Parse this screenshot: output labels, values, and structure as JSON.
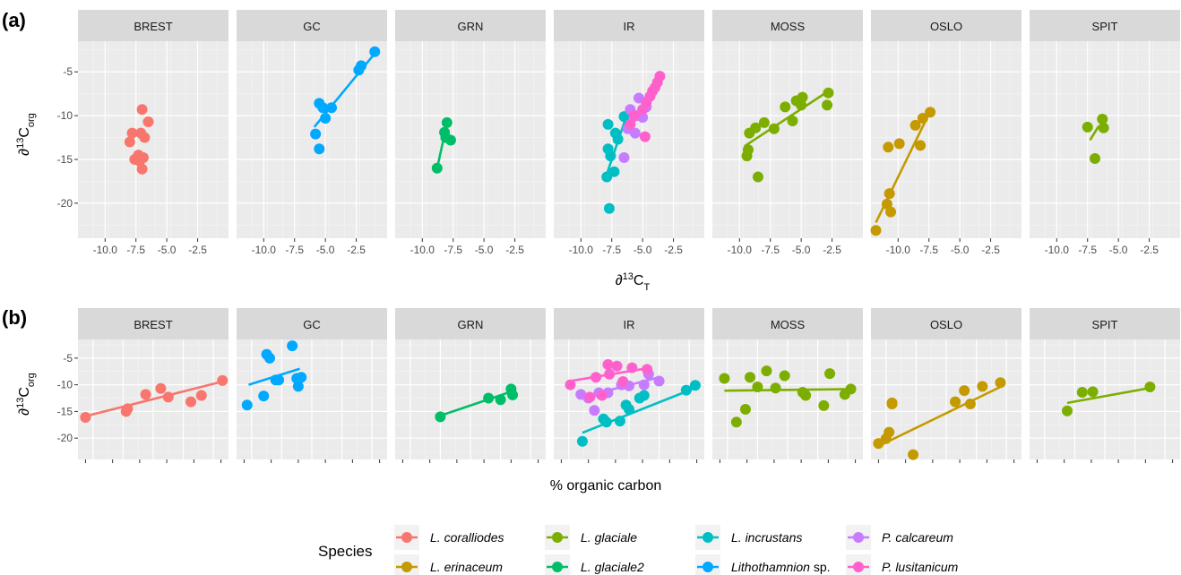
{
  "figure": {
    "panel_labels": [
      "(a)",
      "(b)"
    ],
    "facets": [
      "BREST",
      "GC",
      "GRN",
      "IR",
      "MOSS",
      "OSLO",
      "SPIT"
    ],
    "x_title_a": "∂13CT",
    "x_title_b": "% organic carbon",
    "y_title": "∂13Corg"
  },
  "legend": {
    "title": "Species",
    "items": [
      {
        "name": "L. coralliodes",
        "color": "#F8766D"
      },
      {
        "name": "L. erinaceum",
        "color": "#C49A00"
      },
      {
        "name": "L. glaciale",
        "color": "#7CAE00"
      },
      {
        "name": "L. glaciale2",
        "color": "#00BE67"
      },
      {
        "name": "L. incrustans",
        "color": "#00BFC4"
      },
      {
        "name": "Lithothamnion sp.",
        "color": "#00A9FF"
      },
      {
        "name": "P. calcareum",
        "color": "#C77CFF"
      },
      {
        "name": "P. lusitanicum",
        "color": "#FF61CC"
      }
    ]
  },
  "chart_data": [
    {
      "type": "scatter",
      "panel": "(a)",
      "title": "",
      "xlabel": "∂13CT",
      "ylabel": "∂13Corg",
      "xlim": [
        -12.2,
        0
      ],
      "ylim": [
        -24,
        -1.5
      ],
      "x_ticks": [
        -10.0,
        -7.5,
        -5.0,
        -2.5
      ],
      "x_tick_labels": [
        "-10.0",
        "-7.5",
        "-5.0",
        "-2.5"
      ],
      "y_ticks": [
        -20,
        -15,
        -10,
        -5
      ],
      "y_tick_labels": [
        "-20",
        "-15",
        "-10",
        "-5"
      ],
      "grid": true,
      "facets": [
        {
          "name": "BREST",
          "series": [
            {
              "name": "L. coralliodes",
              "color": "#F8766D",
              "x": [
                -7.0,
                -6.5,
                -7.8,
                -7.1,
                -6.8,
                -8.0,
                -7.3,
                -6.9,
                -7.6,
                -7.2,
                -7.0
              ],
              "y": [
                -9.3,
                -10.7,
                -12.0,
                -12.0,
                -12.5,
                -13.0,
                -14.5,
                -14.8,
                -15.0,
                -15.2,
                -16.1
              ],
              "fit": null
            }
          ]
        },
        {
          "name": "GC",
          "series": [
            {
              "name": "Lithothamnion sp.",
              "color": "#00A9FF",
              "x": [
                -1.0,
                -2.1,
                -2.3,
                -5.5,
                -5.2,
                -4.5,
                -5.0,
                -5.8,
                -5.5
              ],
              "y": [
                -2.7,
                -4.3,
                -4.8,
                -8.6,
                -9.1,
                -9.1,
                -10.3,
                -12.1,
                -13.8
              ],
              "fit": [
                [
                  -5.9,
                  -11.3
                ],
                [
                  -1.0,
                  -2.9
                ]
              ]
            }
          ]
        },
        {
          "name": "GRN",
          "series": [
            {
              "name": "L. glaciale2",
              "color": "#00BE67",
              "x": [
                -8.0,
                -8.2,
                -8.1,
                -7.7,
                -8.8
              ],
              "y": [
                -10.8,
                -11.9,
                -12.5,
                -12.8,
                -16.0
              ],
              "fit": [
                [
                  -8.8,
                  -16.0
                ],
                [
                  -8.0,
                  -10.9
                ]
              ]
            }
          ]
        },
        {
          "name": "IR",
          "series": [
            {
              "name": "L. incrustans",
              "color": "#00BFC4",
              "x": [
                -7.8,
                -6.5,
                -7.2,
                -7.0,
                -7.8,
                -7.6,
                -7.3,
                -7.9,
                -7.7
              ],
              "y": [
                -11.0,
                -10.1,
                -12.0,
                -12.7,
                -13.8,
                -14.6,
                -16.4,
                -17.0,
                -20.6
              ],
              "fit": [
                [
                  -8.0,
                  -17.1
                ],
                [
                  -6.3,
                  -10.0
                ]
              ]
            },
            {
              "name": "P. calcareum",
              "color": "#C77CFF",
              "x": [
                -5.3,
                -4.7,
                -6.0,
                -5.5,
                -5.0,
                -6.2,
                -5.6,
                -6.5
              ],
              "y": [
                -8.0,
                -9.0,
                -9.3,
                -10.0,
                -10.2,
                -11.5,
                -12.0,
                -14.8
              ],
              "fit": [
                [
                  -6.3,
                  -12.0
                ],
                [
                  -4.8,
                  -8.3
                ]
              ]
            },
            {
              "name": "P. lusitanicum",
              "color": "#FF61CC",
              "x": [
                -3.6,
                -3.8,
                -4.0,
                -4.2,
                -4.4,
                -4.7,
                -5.0,
                -5.7,
                -6.0,
                -4.8
              ],
              "y": [
                -5.5,
                -6.2,
                -6.8,
                -7.2,
                -7.8,
                -8.5,
                -9.3,
                -10.0,
                -11.0,
                -12.4
              ],
              "fit": [
                [
                  -6.0,
                  -11.5
                ],
                [
                  -3.6,
                  -5.6
                ]
              ]
            }
          ]
        },
        {
          "name": "MOSS",
          "series": [
            {
              "name": "L. glaciale",
              "color": "#7CAE00",
              "x": [
                -2.8,
                -2.9,
                -4.9,
                -5.4,
                -5.0,
                -6.3,
                -5.7,
                -7.2,
                -8.0,
                -8.7,
                -9.2,
                -9.3,
                -9.4,
                -8.5
              ],
              "y": [
                -7.4,
                -8.8,
                -7.9,
                -8.3,
                -8.8,
                -9.0,
                -10.6,
                -11.5,
                -10.8,
                -11.4,
                -12.0,
                -13.9,
                -14.6,
                -17.0
              ],
              "fit": [
                [
                  -9.6,
                  -13.5
                ],
                [
                  -2.8,
                  -7.2
                ]
              ]
            }
          ]
        },
        {
          "name": "OSLO",
          "series": [
            {
              "name": "L. erinaceum",
              "color": "#C49A00",
              "x": [
                -7.4,
                -8.0,
                -8.6,
                -9.9,
                -10.8,
                -8.2,
                -10.7,
                -10.9,
                -10.6,
                -11.8
              ],
              "y": [
                -9.6,
                -10.3,
                -11.1,
                -13.2,
                -13.6,
                -13.4,
                -18.9,
                -20.1,
                -21.0,
                -23.1
              ],
              "fit": [
                [
                  -11.8,
                  -22.2
                ],
                [
                  -7.4,
                  -9.5
                ]
              ]
            }
          ]
        },
        {
          "name": "SPIT",
          "series": [
            {
              "name": "L. glaciale",
              "color": "#7CAE00",
              "x": [
                -6.3,
                -7.5,
                -6.2,
                -6.9
              ],
              "y": [
                -10.4,
                -11.3,
                -11.4,
                -14.9
              ],
              "fit": [
                [
                  -7.3,
                  -12.8
                ],
                [
                  -6.6,
                  -11.2
                ]
              ]
            }
          ]
        }
      ]
    },
    {
      "type": "scatter",
      "panel": "(b)",
      "title": "",
      "xlabel": "% organic carbon",
      "ylabel": "∂13Corg",
      "xlim": [
        0,
        1
      ],
      "ylim": [
        -24,
        -1.5
      ],
      "y_ticks": [
        -20,
        -15,
        -10,
        -5
      ],
      "y_tick_labels": [
        "-20",
        "-15",
        "-10",
        "-5"
      ],
      "x_tick_labels": [],
      "grid": true,
      "facets": [
        {
          "name": "BREST",
          "series": [
            {
              "name": "L. coralliodes",
              "color": "#F8766D",
              "x": [
                0.05,
                0.32,
                0.33,
                0.45,
                0.55,
                0.6,
                0.75,
                0.82,
                0.96
              ],
              "y": [
                -16.1,
                -15.0,
                -14.5,
                -11.8,
                -10.7,
                -12.3,
                -13.2,
                -12.0,
                -9.2
              ],
              "fit": [
                [
                  0.05,
                  -15.9
                ],
                [
                  0.96,
                  -9.4
                ]
              ]
            }
          ]
        },
        {
          "name": "GC",
          "series": [
            {
              "name": "Lithothamnion sp.",
              "color": "#00A9FF",
              "x": [
                0.07,
                0.18,
                0.2,
                0.22,
                0.26,
                0.28,
                0.37,
                0.41,
                0.43,
                0.4
              ],
              "y": [
                -13.8,
                -12.1,
                -4.3,
                -5.0,
                -9.1,
                -9.1,
                -2.7,
                -10.3,
                -8.6,
                -8.8
              ],
              "fit": [
                [
                  0.08,
                  -10.0
                ],
                [
                  0.42,
                  -7.0
                ]
              ]
            }
          ]
        },
        {
          "name": "GRN",
          "series": [
            {
              "name": "L. glaciale2",
              "color": "#00BE67",
              "x": [
                0.3,
                0.62,
                0.7,
                0.77,
                0.78
              ],
              "y": [
                -16.0,
                -12.5,
                -12.8,
                -10.8,
                -11.9
              ],
              "fit": [
                [
                  0.3,
                  -15.8
                ],
                [
                  0.78,
                  -11.2
                ]
              ]
            }
          ]
        },
        {
          "name": "IR",
          "series": [
            {
              "name": "L. incrustans",
              "color": "#00BFC4",
              "x": [
                0.19,
                0.33,
                0.35,
                0.44,
                0.48,
                0.5,
                0.57,
                0.6,
                0.88,
                0.94
              ],
              "y": [
                -20.6,
                -16.4,
                -17.0,
                -16.8,
                -13.8,
                -14.6,
                -12.5,
                -12.0,
                -11.0,
                -10.1
              ],
              "fit": [
                [
                  0.19,
                  -19.0
                ],
                [
                  0.94,
                  -10.6
                ]
              ]
            },
            {
              "name": "P. calcareum",
              "color": "#C77CFF",
              "x": [
                0.18,
                0.23,
                0.27,
                0.3,
                0.36,
                0.45,
                0.5,
                0.6,
                0.63,
                0.7
              ],
              "y": [
                -11.8,
                -12.5,
                -14.8,
                -11.5,
                -11.5,
                -10.0,
                -10.2,
                -10.0,
                -8.0,
                -9.3
              ],
              "fit": [
                [
                  0.18,
                  -12.4
                ],
                [
                  0.7,
                  -8.6
                ]
              ]
            },
            {
              "name": "P. lusitanicum",
              "color": "#FF61CC",
              "x": [
                0.11,
                0.24,
                0.28,
                0.32,
                0.36,
                0.37,
                0.42,
                0.46,
                0.52,
                0.62
              ],
              "y": [
                -10.0,
                -12.3,
                -8.6,
                -12.0,
                -6.2,
                -8.0,
                -6.5,
                -9.4,
                -6.8,
                -7.1
              ],
              "fit": [
                [
                  0.11,
                  -9.3
                ],
                [
                  0.62,
                  -6.9
                ]
              ]
            }
          ]
        },
        {
          "name": "MOSS",
          "series": [
            {
              "name": "L. glaciale",
              "color": "#7CAE00",
              "x": [
                0.08,
                0.16,
                0.22,
                0.25,
                0.3,
                0.36,
                0.42,
                0.48,
                0.6,
                0.62,
                0.74,
                0.78,
                0.88,
                0.92
              ],
              "y": [
                -8.8,
                -17.0,
                -14.6,
                -8.6,
                -10.4,
                -7.4,
                -10.6,
                -8.3,
                -11.4,
                -12.0,
                -13.9,
                -7.9,
                -11.8,
                -10.8
              ],
              "fit": [
                [
                  0.08,
                  -11.1
                ],
                [
                  0.95,
                  -10.8
                ]
              ]
            }
          ]
        },
        {
          "name": "OSLO",
          "series": [
            {
              "name": "L. erinaceum",
              "color": "#C49A00",
              "x": [
                0.05,
                0.1,
                0.12,
                0.14,
                0.14,
                0.28,
                0.56,
                0.62,
                0.66,
                0.74,
                0.86
              ],
              "y": [
                -21.0,
                -20.1,
                -18.9,
                -13.4,
                -13.6,
                -23.1,
                -13.2,
                -11.1,
                -13.6,
                -10.3,
                -9.6
              ],
              "fit": [
                [
                  0.05,
                  -21.5
                ],
                [
                  0.86,
                  -10.4
                ]
              ]
            }
          ]
        },
        {
          "name": "SPIT",
          "series": [
            {
              "name": "L. glaciale",
              "color": "#7CAE00",
              "x": [
                0.25,
                0.35,
                0.42,
                0.8
              ],
              "y": [
                -14.9,
                -11.4,
                -11.3,
                -10.4
              ],
              "fit": [
                [
                  0.25,
                  -13.4
                ],
                [
                  0.8,
                  -10.6
                ]
              ]
            }
          ]
        }
      ]
    }
  ]
}
